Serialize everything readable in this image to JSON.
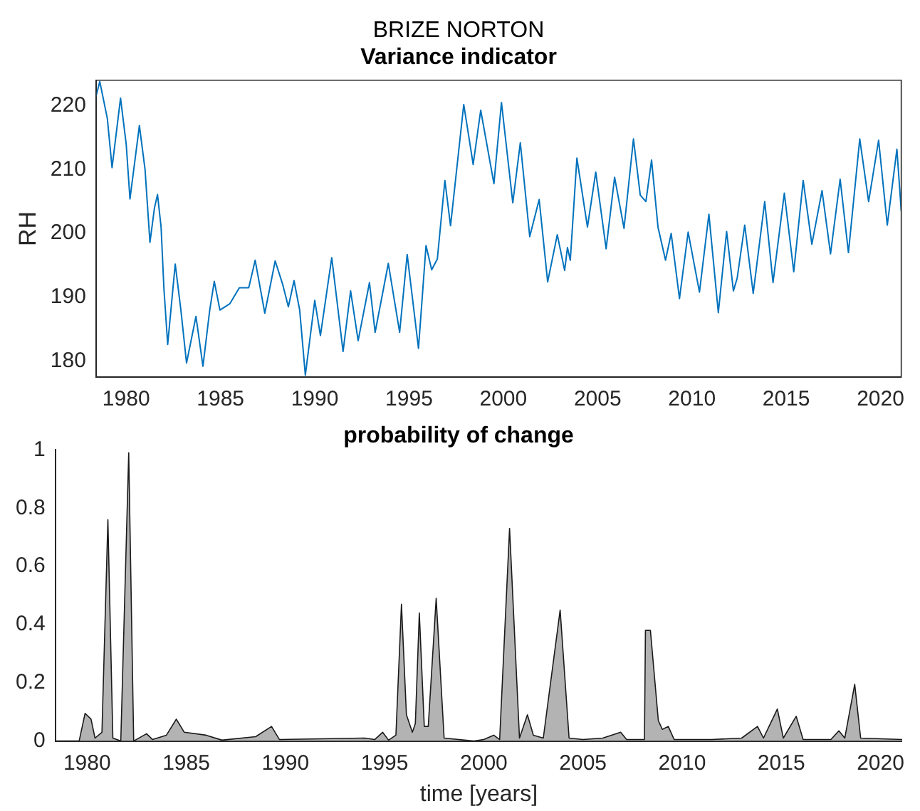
{
  "chart_data": [
    {
      "type": "line",
      "title": "BRIZE NORTON",
      "subtitle": "Variance indicator",
      "ylabel": "RH",
      "xlim": [
        1978.4,
        2021.1
      ],
      "xticks": [
        1980,
        1985,
        1990,
        1995,
        2000,
        2005,
        2010,
        2015,
        2020
      ],
      "ylim": [
        177.5,
        224
      ],
      "yticks": [
        180,
        190,
        200,
        210,
        220
      ],
      "grid": false,
      "legend": false,
      "marker": "none",
      "series": [
        {
          "color": "#0072bd",
          "x": [
            1978.4,
            1978.6,
            1979.0,
            1979.25,
            1979.7,
            1980.0,
            1980.2,
            1980.7,
            1981.0,
            1981.26,
            1981.5,
            1981.66,
            1981.85,
            1982.0,
            1982.2,
            1982.6,
            1982.9,
            1983.2,
            1983.7,
            1984.07,
            1984.43,
            1984.67,
            1984.97,
            1985.5,
            1986.0,
            1986.5,
            1986.84,
            1987.35,
            1987.9,
            1988.3,
            1988.6,
            1988.9,
            1989.2,
            1989.5,
            1990.0,
            1990.3,
            1990.9,
            1991.5,
            1991.9,
            1992.3,
            1992.9,
            1993.2,
            1993.9,
            1994.5,
            1994.9,
            1995.5,
            1995.9,
            1996.2,
            1996.5,
            1996.9,
            1997.2,
            1997.9,
            1998.4,
            1998.8,
            1999.5,
            1999.9,
            2000.5,
            2000.9,
            2001.4,
            2001.9,
            2002.35,
            2002.86,
            2003.25,
            2003.4,
            2003.55,
            2003.9,
            2004.46,
            2004.9,
            2005.45,
            2005.9,
            2006.4,
            2006.9,
            2007.26,
            2007.56,
            2007.86,
            2008.2,
            2008.6,
            2008.9,
            2009.34,
            2009.8,
            2010.4,
            2010.9,
            2011.4,
            2011.84,
            2012.2,
            2012.4,
            2012.8,
            2013.25,
            2013.86,
            2014.3,
            2014.9,
            2015.4,
            2015.9,
            2016.36,
            2016.9,
            2017.35,
            2017.86,
            2018.3,
            2018.9,
            2019.37,
            2019.9,
            2020.36,
            2020.87,
            2021.1
          ],
          "values": [
            221.5,
            223.8,
            218,
            210.3,
            221.2,
            214,
            205.4,
            216.9,
            210,
            198.6,
            204,
            206.1,
            201,
            191.4,
            182.6,
            195.2,
            188,
            179.7,
            187,
            179.2,
            188,
            192.5,
            188,
            189,
            191.5,
            191.5,
            195.8,
            187.5,
            195.7,
            192,
            188.5,
            192.6,
            188,
            177.8,
            189.5,
            184,
            196.2,
            181.5,
            191,
            183.2,
            192.3,
            184.5,
            195.3,
            184.5,
            196.7,
            182,
            198.1,
            194.3,
            196,
            208.3,
            201.2,
            220.2,
            210.8,
            219.3,
            207.8,
            220.5,
            204.8,
            214.2,
            199.5,
            205.3,
            192.4,
            199.8,
            194.2,
            197.8,
            195.8,
            211.8,
            201,
            209.6,
            197.6,
            208.8,
            200.8,
            214.8,
            206,
            205,
            211.5,
            201,
            195.8,
            200,
            189.8,
            200.2,
            190.8,
            203,
            187.6,
            200.3,
            191,
            193,
            201.3,
            190.6,
            205,
            192.3,
            206.3,
            194,
            208.3,
            198.3,
            206.7,
            196.8,
            208.5,
            197,
            214.8,
            205,
            214.6,
            201.3,
            213.2,
            203.5
          ]
        }
      ]
    },
    {
      "type": "area",
      "title": "probability of change",
      "xlabel": "time [years]",
      "xlim": [
        1978.4,
        2021.1
      ],
      "xticks": [
        1980,
        1985,
        1990,
        1995,
        2000,
        2005,
        2010,
        2015,
        2020
      ],
      "ylim": [
        0,
        1
      ],
      "yticks": [
        0,
        0.2,
        0.4,
        0.6,
        0.8,
        1
      ],
      "grid": false,
      "legend": false,
      "marker": "none",
      "series": [
        {
          "color": "#b3b3b3",
          "x": [
            1978.4,
            1979.6,
            1979.9,
            1980.2,
            1980.4,
            1980.75,
            1981.05,
            1981.3,
            1981.7,
            1982.1,
            1982.35,
            1983.0,
            1983.3,
            1984.0,
            1984.5,
            1984.9,
            1986.0,
            1986.8,
            1988.5,
            1989.3,
            1989.7,
            1994.0,
            1994.5,
            1994.9,
            1995.2,
            1995.57,
            1995.85,
            1996.1,
            1996.4,
            1996.55,
            1996.75,
            1997.0,
            1997.2,
            1997.6,
            1998.0,
            1999.5,
            2000.0,
            2000.5,
            2000.8,
            2001.3,
            2001.8,
            2002.2,
            2002.5,
            2003.0,
            2003.85,
            2004.3,
            2005.0,
            2006.0,
            2006.9,
            2007.2,
            2008.1,
            2008.15,
            2008.4,
            2008.8,
            2009.0,
            2009.3,
            2009.6,
            2011.5,
            2013.0,
            2013.8,
            2014.1,
            2014.8,
            2015.1,
            2015.75,
            2016.1,
            2017.5,
            2017.9,
            2018.2,
            2018.7,
            2019.0,
            2021.1
          ],
          "values": [
            0,
            0,
            0.095,
            0.075,
            0.01,
            0.03,
            0.76,
            0.01,
            0,
            0.99,
            0,
            0.025,
            0.005,
            0.02,
            0.075,
            0.03,
            0.02,
            0.003,
            0.015,
            0.05,
            0.005,
            0.01,
            0.005,
            0.03,
            0.003,
            0.02,
            0.47,
            0.09,
            0.03,
            0.06,
            0.44,
            0.05,
            0.05,
            0.49,
            0.01,
            0,
            0.005,
            0.02,
            0.005,
            0.73,
            0.01,
            0.09,
            0.02,
            0.01,
            0.45,
            0.01,
            0.005,
            0.01,
            0.03,
            0.005,
            0.005,
            0.38,
            0.38,
            0.07,
            0.04,
            0.05,
            0.005,
            0.005,
            0.01,
            0.05,
            0.01,
            0.11,
            0.01,
            0.085,
            0.005,
            0.005,
            0.035,
            0.01,
            0.195,
            0.01,
            0.005
          ]
        }
      ]
    }
  ]
}
